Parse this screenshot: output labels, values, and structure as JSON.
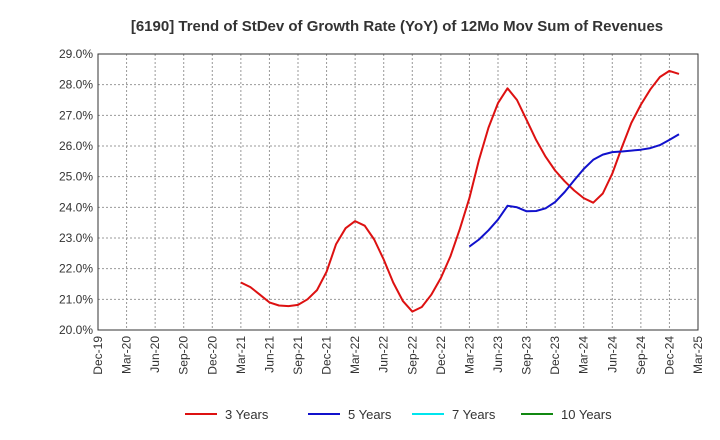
{
  "chart_data": {
    "type": "line",
    "title": "[6190]  Trend of StDev of Growth Rate (YoY) of 12Mo Mov Sum of Revenues",
    "xlabel": "",
    "ylabel": "",
    "ylim": [
      20.0,
      29.0
    ],
    "y_ticks": [
      20.0,
      21.0,
      22.0,
      23.0,
      24.0,
      25.0,
      26.0,
      27.0,
      28.0,
      29.0
    ],
    "y_tick_labels": [
      "20.0%",
      "21.0%",
      "22.0%",
      "23.0%",
      "24.0%",
      "25.0%",
      "26.0%",
      "27.0%",
      "28.0%",
      "29.0%"
    ],
    "x_tick_labels": [
      "Dec-19",
      "Mar-20",
      "Jun-20",
      "Sep-20",
      "Dec-20",
      "Mar-21",
      "Jun-21",
      "Sep-21",
      "Dec-21",
      "Mar-22",
      "Jun-22",
      "Sep-22",
      "Dec-22",
      "Mar-23",
      "Jun-23",
      "Sep-23",
      "Dec-23",
      "Mar-24",
      "Jun-24",
      "Sep-24",
      "Dec-24",
      "Mar-25"
    ],
    "x_start": "Dec-19",
    "x_months_total": 63,
    "grid": true,
    "legend_position": "bottom",
    "series": [
      {
        "name": "3 Years",
        "color": "#dd1111",
        "start_month_index": 15,
        "values": [
          21.55,
          21.4,
          21.15,
          20.9,
          20.8,
          20.78,
          20.82,
          21.0,
          21.3,
          21.9,
          22.8,
          23.32,
          23.55,
          23.4,
          22.95,
          22.3,
          21.55,
          20.95,
          20.6,
          20.75,
          21.15,
          21.7,
          22.4,
          23.3,
          24.3,
          25.55,
          26.6,
          27.4,
          27.88,
          27.5,
          26.85,
          26.2,
          25.65,
          25.2,
          24.85,
          24.55,
          24.3,
          24.15,
          24.45,
          25.1,
          25.95,
          26.75,
          27.35,
          27.85,
          28.25,
          28.45,
          28.35
        ]
      },
      {
        "name": "5 Years",
        "color": "#1111cc",
        "start_month_index": 39,
        "values": [
          22.72,
          22.95,
          23.25,
          23.6,
          24.05,
          24.0,
          23.87,
          23.88,
          23.97,
          24.17,
          24.5,
          24.88,
          25.25,
          25.55,
          25.72,
          25.8,
          25.82,
          25.85,
          25.88,
          25.93,
          26.03,
          26.2,
          26.38
        ]
      },
      {
        "name": "7 Years",
        "color": "#00e5ee",
        "start_month_index": 0,
        "values": []
      },
      {
        "name": "10 Years",
        "color": "#118811",
        "start_month_index": 0,
        "values": []
      }
    ]
  }
}
